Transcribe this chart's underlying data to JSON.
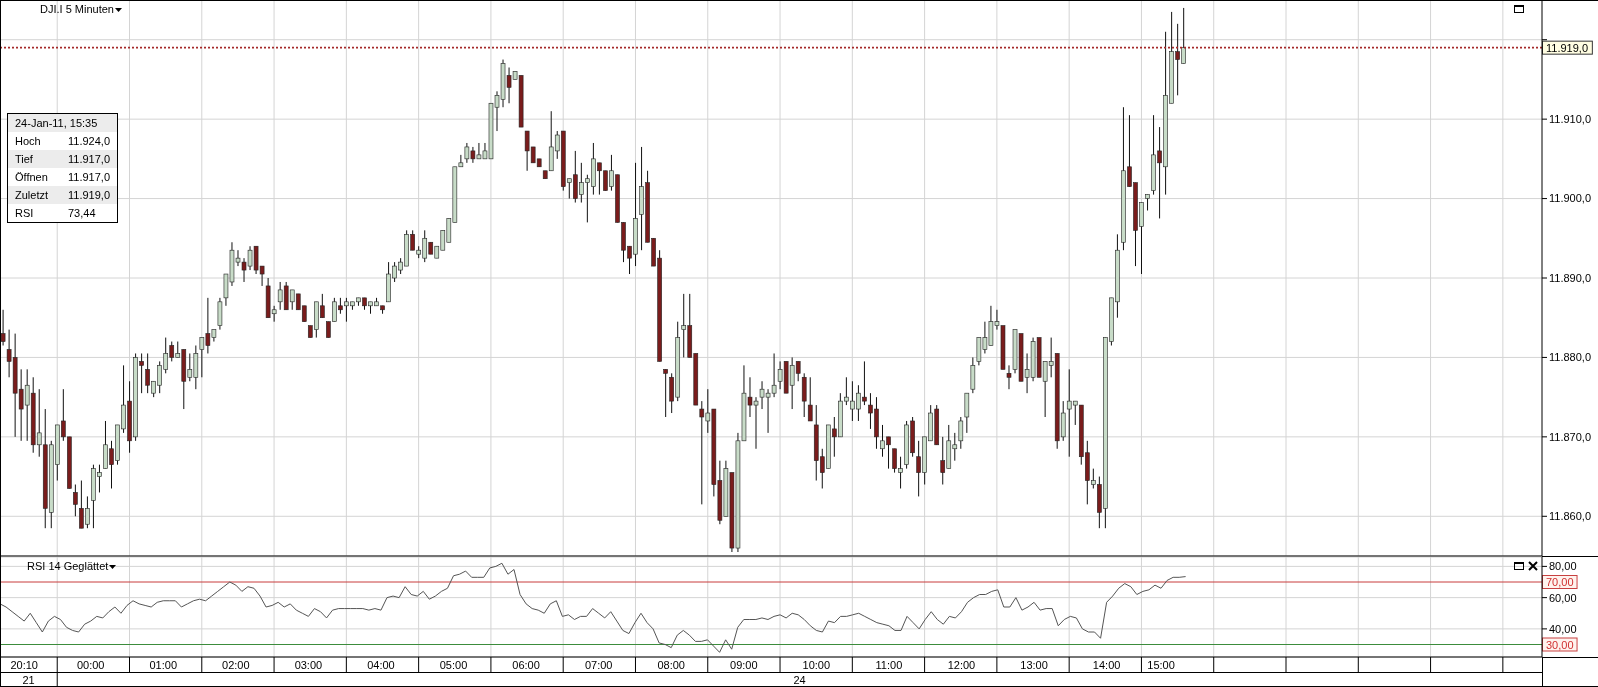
{
  "chart_data": [
    {
      "type": "candlestick",
      "title": "DJI.I 5 Minuten",
      "categories": [
        null,
        null,
        null,
        null,
        null,
        null,
        null,
        null,
        null,
        null,
        null,
        null,
        null,
        null,
        null,
        null,
        null,
        null,
        null,
        null,
        null,
        null,
        null,
        null,
        null,
        null,
        null,
        null,
        null,
        null,
        null,
        null,
        null,
        null,
        null,
        null,
        null,
        null,
        null,
        null,
        null,
        null,
        null,
        null,
        null,
        null,
        null,
        null,
        null,
        null,
        null,
        null,
        null,
        null,
        null,
        null,
        null,
        null,
        null,
        null,
        null,
        null,
        null,
        null,
        null,
        null,
        null,
        null,
        null,
        null,
        null,
        null,
        null,
        null,
        null,
        null,
        null,
        null,
        null,
        null,
        null,
        null,
        null,
        null,
        null,
        null,
        null,
        null,
        null,
        null,
        null,
        null,
        null,
        null,
        null,
        null,
        null,
        null,
        null,
        null,
        null,
        null,
        null,
        null,
        null,
        null,
        null,
        null,
        null,
        null,
        null,
        null,
        null,
        null,
        null,
        null,
        null,
        null,
        null,
        null,
        null,
        null,
        null,
        null,
        null,
        null,
        null,
        null,
        null,
        null,
        null,
        null,
        null,
        null,
        null,
        null,
        null,
        null,
        null,
        null,
        null,
        null,
        null,
        null,
        null,
        null,
        null,
        null,
        null,
        null,
        null,
        null,
        null,
        null,
        null,
        null,
        null,
        null,
        null,
        null,
        null,
        null,
        null,
        null,
        null,
        null,
        null,
        null,
        null,
        null,
        null,
        null,
        null,
        null,
        null,
        null,
        null,
        null,
        null,
        null,
        null,
        null,
        null,
        null,
        null,
        null,
        null,
        null,
        null,
        null,
        null,
        null,
        null,
        null,
        null,
        null,
        null,
        null,
        null,
        null,
        null,
        null,
        null,
        null,
        null,
        null,
        null,
        null,
        null,
        null,
        null,
        null,
        null,
        null,
        null,
        null,
        null,
        null,
        null,
        null,
        null,
        null,
        null,
        null,
        null,
        null,
        null,
        null,
        null,
        null,
        null,
        null,
        null,
        null,
        null,
        null,
        null,
        null,
        null,
        null,
        null,
        null,
        null,
        null,
        null,
        null,
        null,
        null,
        null,
        null,
        null,
        null,
        null,
        null,
        null,
        null
      ],
      "ohlc": [
        [
          11883,
          11886,
          11881.5,
          11882
        ],
        [
          11881,
          11883.5,
          11877.5,
          11879.5
        ],
        [
          11880,
          11883,
          11870,
          11875.5
        ],
        [
          11876,
          11878.5,
          11869.5,
          11873.5
        ],
        [
          11874,
          11878.5,
          11869.5,
          11876.5
        ],
        [
          11875.5,
          11877.5,
          11868,
          11869
        ],
        [
          11869,
          11876,
          11867.5,
          11870.5
        ],
        [
          11869,
          11873.5,
          11858.5,
          11861
        ],
        [
          11860.5,
          11869.5,
          11858.5,
          11869
        ],
        [
          11866.5,
          11871.5,
          11864.5,
          11871.5
        ],
        [
          11872,
          11876,
          11869.5,
          11870
        ],
        [
          11870,
          11870,
          11863.5,
          11863.5
        ],
        [
          11863,
          11864,
          11860,
          11861.5
        ],
        [
          11861,
          11864.5,
          11858.5,
          11858.5
        ],
        [
          11859,
          11862.5,
          11858.5,
          11861
        ],
        [
          11862,
          11866.5,
          11858.5,
          11866
        ],
        [
          11865,
          11866.5,
          11863,
          11865.5
        ],
        [
          11866,
          11872,
          11866,
          11869
        ],
        [
          11868.5,
          11869.5,
          11863.5,
          11866.5
        ],
        [
          11867,
          11871.5,
          11866.5,
          11871.5
        ],
        [
          11871,
          11879,
          11870.5,
          11874
        ],
        [
          11874.5,
          11877,
          11868,
          11869.5
        ],
        [
          11870,
          11880.5,
          11869.5,
          11880
        ],
        [
          11879.5,
          11880.5,
          11875.5,
          11879
        ],
        [
          11878.5,
          11880.5,
          11875.5,
          11876.5
        ],
        [
          11875.5,
          11877,
          11875,
          11877
        ],
        [
          11876.5,
          11879.5,
          11875.5,
          11879
        ],
        [
          11878.5,
          11882.5,
          11878,
          11880.5
        ],
        [
          11881.5,
          11882,
          11879.5,
          11880
        ],
        [
          11880,
          11882,
          11880,
          11880.5
        ],
        [
          11881,
          11881,
          11873.5,
          11877
        ],
        [
          11877.5,
          11880.5,
          11877,
          11878.5
        ],
        [
          11877.5,
          11881.5,
          11876,
          11880.5
        ],
        [
          11881,
          11882.5,
          11877.5,
          11882.5
        ],
        [
          11883,
          11887.5,
          11880.5,
          11881.5
        ],
        [
          11882.5,
          11883.5,
          11882,
          11883.5
        ],
        [
          11884,
          11887.5,
          11883.5,
          11887
        ],
        [
          11887.5,
          11890.5,
          11886.5,
          11890.5
        ],
        [
          11889.5,
          11894.5,
          11889,
          11893.5
        ],
        [
          11892,
          11893.5,
          11891.5,
          11892.5
        ],
        [
          11892,
          11892.5,
          11889.5,
          11891
        ],
        [
          11891.5,
          11894,
          11891,
          11893.5
        ],
        [
          11894,
          11894,
          11890.5,
          11891
        ],
        [
          11891.5,
          11891.5,
          11889,
          11890.5
        ],
        [
          11889,
          11890,
          11885,
          11885
        ],
        [
          11885.5,
          11886.5,
          11884.5,
          11886
        ],
        [
          11887,
          11889.5,
          11886,
          11888.5
        ],
        [
          11889,
          11889.5,
          11886,
          11886
        ],
        [
          11887,
          11888.5,
          11886,
          11888.5
        ],
        [
          11888,
          11888,
          11886,
          11886
        ],
        [
          11886.5,
          11886.5,
          11884.5,
          11884.5
        ],
        [
          11884,
          11884,
          11882.5,
          11882.5
        ],
        [
          11883.5,
          11887,
          11882.5,
          11887
        ],
        [
          11886.5,
          11888,
          11885,
          11885
        ],
        [
          11884.5,
          11884.5,
          11882.5,
          11882.5
        ],
        [
          11884.5,
          11887.5,
          11884.5,
          11887
        ],
        [
          11886.5,
          11887.5,
          11885.5,
          11886
        ],
        [
          11886.5,
          11887.5,
          11884.5,
          11887
        ],
        [
          11886.5,
          11887,
          11886,
          11887
        ],
        [
          11887,
          11887.5,
          11886.5,
          11887.5
        ],
        [
          11887.5,
          11887.5,
          11886,
          11886.5
        ],
        [
          11886.5,
          11887,
          11885.5,
          11887
        ],
        [
          11886.5,
          11887.5,
          11886.5,
          11887
        ],
        [
          11886.5,
          11886.5,
          11885.5,
          11886
        ],
        [
          11887,
          11892,
          11887,
          11890.5
        ],
        [
          11890,
          11892,
          11889.5,
          11891.5
        ],
        [
          11891,
          11892.5,
          11890.5,
          11892
        ],
        [
          11891.5,
          11896,
          11891.5,
          11895.5
        ],
        [
          11895.5,
          11896,
          11893.5,
          11893.5
        ],
        [
          11893,
          11894,
          11892.5,
          11893.5
        ],
        [
          11892.5,
          11896,
          11892,
          11895
        ],
        [
          11894.5,
          11894.5,
          11893,
          11893
        ],
        [
          11892.5,
          11894,
          11892.5,
          11894
        ],
        [
          11893.5,
          11896,
          11893.5,
          11896
        ],
        [
          11894.5,
          11897.5,
          11894.5,
          11897.5
        ],
        [
          11897,
          11904,
          11897,
          11904
        ],
        [
          11904,
          11905.5,
          11904,
          11904.5
        ],
        [
          11905,
          11907,
          11904.5,
          11906.5
        ],
        [
          11906,
          11906.5,
          11904.5,
          11905
        ],
        [
          11905,
          11907,
          11905,
          11905.5
        ],
        [
          11905,
          11907,
          11905,
          11906
        ],
        [
          11905,
          11912,
          11905,
          11912
        ],
        [
          11911.5,
          11913.5,
          11908.5,
          11913
        ],
        [
          11912.5,
          11917.5,
          11911.5,
          11917
        ],
        [
          11915.5,
          11916.5,
          11912,
          11914
        ],
        [
          11915,
          11916,
          11915,
          11916
        ],
        [
          11915.5,
          11915.5,
          11909,
          11909
        ],
        [
          11908.5,
          11908.5,
          11903.5,
          11906
        ],
        [
          11906.5,
          11906.5,
          11904.5,
          11904.5
        ],
        [
          11905,
          11905,
          11904,
          11904
        ],
        [
          11903.5,
          11903.5,
          11902.5,
          11902.5
        ],
        [
          11903.5,
          11911,
          11903.5,
          11906.5
        ],
        [
          11906,
          11908.5,
          11905,
          11908
        ],
        [
          11908.5,
          11908.5,
          11901,
          11901.5
        ],
        [
          11902,
          11902.5,
          11900,
          11902.5
        ],
        [
          11903,
          11906,
          11899.5,
          11900
        ],
        [
          11900.5,
          11904.5,
          11899.5,
          11902
        ],
        [
          11902,
          11903,
          11897,
          11902.5
        ],
        [
          11901.5,
          11907,
          11900.5,
          11905
        ],
        [
          11904.5,
          11904.5,
          11900.5,
          11903.5
        ],
        [
          11903.5,
          11903.5,
          11901,
          11901
        ],
        [
          11901.5,
          11905.5,
          11901,
          11903.5
        ],
        [
          11903,
          11903,
          11897,
          11897
        ],
        [
          11897,
          11897,
          11892,
          11893.5
        ],
        [
          11894,
          11894,
          11890.5,
          11892.5
        ],
        [
          11893,
          11904.5,
          11891.5,
          11897.5
        ],
        [
          11898,
          11906.5,
          11893.5,
          11901.5
        ],
        [
          11902,
          11903.5,
          11894.5,
          11894.5
        ],
        [
          11895,
          11895,
          11891.5,
          11891.5
        ],
        [
          11892.5,
          11893.5,
          11879.5,
          11879.5
        ],
        [
          11878.5,
          11878.5,
          11872.5,
          11878
        ],
        [
          11877.5,
          11878,
          11873,
          11874.5
        ],
        [
          11875,
          11884.5,
          11874.5,
          11882.5
        ],
        [
          11883.5,
          11888,
          11880,
          11884
        ],
        [
          11884,
          11888,
          11880,
          11880
        ],
        [
          11880.5,
          11880.5,
          11874,
          11874
        ],
        [
          11873.5,
          11874.5,
          11861.5,
          11872.5
        ],
        [
          11872,
          11876,
          11870.5,
          11873
        ],
        [
          11873.5,
          11873.5,
          11862.5,
          11864
        ],
        [
          11864.5,
          11867,
          11859,
          11859.5
        ],
        [
          11860,
          11867,
          11860,
          11866
        ],
        [
          11865.5,
          11865.5,
          11855.5,
          11856
        ],
        [
          11856,
          11870.5,
          11855.5,
          11869.5
        ],
        [
          11869.5,
          11879,
          11869.5,
          11875.5
        ],
        [
          11875,
          11877.5,
          11872.5,
          11874
        ],
        [
          11874,
          11875,
          11868.5,
          11874.5
        ],
        [
          11875,
          11877,
          11873.5,
          11876
        ],
        [
          11875,
          11876,
          11870.5,
          11875.5
        ],
        [
          11875.5,
          11880.5,
          11875,
          11876.5
        ],
        [
          11877,
          11879.5,
          11876,
          11878.5
        ],
        [
          11879.5,
          11879.5,
          11875.5,
          11875.5
        ],
        [
          11876.5,
          11880,
          11873.5,
          11879
        ],
        [
          11879.5,
          11879.5,
          11877,
          11878
        ],
        [
          11877.5,
          11878,
          11872.5,
          11874.5
        ],
        [
          11874,
          11877.5,
          11872,
          11872
        ],
        [
          11871.5,
          11874,
          11864.5,
          11867
        ],
        [
          11867.5,
          11868.5,
          11863.5,
          11865.5
        ],
        [
          11866,
          11871.5,
          11866,
          11871.5
        ],
        [
          11871,
          11872.5,
          11867.5,
          11870
        ],
        [
          11870,
          11875.5,
          11870,
          11874.5
        ],
        [
          11874.5,
          11877.5,
          11874,
          11875
        ],
        [
          11873.5,
          11877,
          11872,
          11874.5
        ],
        [
          11873.5,
          11876.5,
          11872,
          11875.5
        ],
        [
          11875,
          11879.5,
          11874,
          11874.5
        ],
        [
          11874,
          11875.5,
          11871,
          11873
        ],
        [
          11873.5,
          11875,
          11868.5,
          11870
        ],
        [
          11868.5,
          11871.5,
          11867.5,
          11869.5
        ],
        [
          11870,
          11870,
          11866,
          11869
        ],
        [
          11868.5,
          11868.5,
          11865.5,
          11866
        ],
        [
          11865.5,
          11867.5,
          11863.5,
          11866
        ],
        [
          11866.5,
          11872,
          11866,
          11871.5
        ],
        [
          11872,
          11872.5,
          11867.5,
          11868
        ],
        [
          11867.5,
          11869.5,
          11862.5,
          11865.5
        ],
        [
          11865.5,
          11870,
          11864,
          11870
        ],
        [
          11869.5,
          11874,
          11869.5,
          11873
        ],
        [
          11873.5,
          11874,
          11869,
          11869
        ],
        [
          11867,
          11870,
          11864,
          11865.5
        ],
        [
          11866,
          11871.5,
          11866,
          11869.5
        ],
        [
          11868.5,
          11870.5,
          11867,
          11869
        ],
        [
          11869.5,
          11872.5,
          11868.5,
          11872
        ],
        [
          11872.5,
          11875.5,
          11870.5,
          11875.5
        ],
        [
          11876,
          11880,
          11875.5,
          11879
        ],
        [
          11879.5,
          11882.5,
          11879,
          11882.5
        ],
        [
          11881,
          11884.5,
          11880.5,
          11882.5
        ],
        [
          11881.5,
          11886.5,
          11881.5,
          11884.5
        ],
        [
          11884,
          11886,
          11883.5,
          11884.5
        ],
        [
          11884,
          11884,
          11878.5,
          11878.5
        ],
        [
          11878,
          11879,
          11876,
          11877.5
        ],
        [
          11878.5,
          11883.5,
          11878,
          11883.5
        ],
        [
          11883,
          11883,
          11877,
          11877
        ],
        [
          11877.5,
          11880.5,
          11875.5,
          11878.5
        ],
        [
          11877.5,
          11882.5,
          11877,
          11882
        ],
        [
          11882.5,
          11882.5,
          11877.5,
          11877.5
        ],
        [
          11877,
          11879.5,
          11872.5,
          11879.5
        ],
        [
          11879,
          11882.5,
          11877.5,
          11879.5
        ],
        [
          11880.5,
          11880.5,
          11868.5,
          11869.5
        ],
        [
          11870,
          11874.5,
          11869.5,
          11873
        ],
        [
          11873.5,
          11878.5,
          11867.5,
          11874.5
        ],
        [
          11874,
          11874.5,
          11871.5,
          11874.5
        ],
        [
          11874,
          11874,
          11866.5,
          11867.5
        ],
        [
          11868,
          11869.5,
          11861.5,
          11864.5
        ],
        [
          11864,
          11866,
          11863.5,
          11864.5
        ],
        [
          11864,
          11865,
          11858.5,
          11860.5
        ],
        [
          11861,
          11882.5,
          11858.5,
          11882.5
        ],
        [
          11882,
          11887.5,
          11881.5,
          11887.5
        ],
        [
          11887,
          11895.5,
          11885,
          11893.5
        ],
        [
          11894.5,
          11911.5,
          11893.5,
          11903.5
        ],
        [
          11904,
          11910.5,
          11901.5,
          11901.5
        ],
        [
          11902,
          11902,
          11891.5,
          11896
        ],
        [
          11896.5,
          11899.5,
          11890.5,
          11899.5
        ],
        [
          11900,
          11900.5,
          11898.5,
          11900.5
        ],
        [
          11901,
          11910.5,
          11900.5,
          11905.5
        ],
        [
          11906,
          11909,
          11897.5,
          11904.5
        ],
        [
          11904,
          11921,
          11900.5,
          11913
        ],
        [
          11912,
          11923.5,
          11912,
          11918.5
        ],
        [
          11918.5,
          11922,
          11913,
          11917.5
        ],
        [
          11917,
          11924,
          11917,
          11919
        ],
        null,
        null,
        null,
        null,
        null,
        null,
        null,
        null,
        null,
        null,
        null,
        null,
        null,
        null,
        null,
        null,
        null,
        null,
        null,
        null,
        null,
        null,
        null,
        null,
        null,
        null,
        null,
        null,
        null,
        null,
        null,
        null,
        null,
        null,
        null,
        null,
        null,
        null,
        null,
        null,
        null,
        null,
        null,
        null,
        null,
        null,
        null,
        null,
        null,
        null,
        null,
        null,
        null,
        null,
        null,
        null,
        null,
        null,
        null
      ],
      "colors": [
        "#7a1c1c",
        "#7a1c1c",
        "#7a1c1c",
        "#7a1c1c",
        "#c8dcc8",
        "#7a1c1c",
        "#c8dcc8",
        "#7a1c1c",
        "#c8dcc8",
        "#c8dcc8",
        "#7a1c1c",
        "#7a1c1c",
        "#7a1c1c",
        "#7a1c1c",
        "#c8dcc8",
        "#c8dcc8",
        "#c8dcc8",
        "#c8dcc8",
        "#7a1c1c",
        "#c8dcc8",
        "#c8dcc8",
        "#7a1c1c",
        "#c8dcc8",
        "#7a1c1c",
        "#7a1c1c",
        "#c8dcc8",
        "#c8dcc8",
        "#c8dcc8",
        "#7a1c1c",
        "#c8dcc8",
        "#7a1c1c",
        "#c8dcc8",
        "#c8dcc8",
        "#c8dcc8",
        "#7a1c1c",
        "#c8dcc8",
        "#c8dcc8",
        "#c8dcc8",
        "#c8dcc8",
        "#c8dcc8",
        "#7a1c1c",
        "#c8dcc8",
        "#7a1c1c",
        "#7a1c1c",
        "#7a1c1c",
        "#c8dcc8",
        "#c8dcc8",
        "#7a1c1c",
        "#c8dcc8",
        "#7a1c1c",
        "#7a1c1c",
        "#7a1c1c",
        "#c8dcc8",
        "#7a1c1c",
        "#7a1c1c",
        "#c8dcc8",
        "#7a1c1c",
        "#c8dcc8",
        "#c8dcc8",
        "#c8dcc8",
        "#7a1c1c",
        "#c8dcc8",
        "#c8dcc8",
        "#7a1c1c",
        "#c8dcc8",
        "#c8dcc8",
        "#c8dcc8",
        "#c8dcc8",
        "#7a1c1c",
        "#c8dcc8",
        "#c8dcc8",
        "#7a1c1c",
        "#c8dcc8",
        "#c8dcc8",
        "#c8dcc8",
        "#c8dcc8",
        "#c8dcc8",
        "#c8dcc8",
        "#7a1c1c",
        "#c8dcc8",
        "#c8dcc8",
        "#c8dcc8",
        "#c8dcc8",
        "#c8dcc8",
        "#7a1c1c",
        "#c8dcc8",
        "#7a1c1c",
        "#7a1c1c",
        "#7a1c1c",
        "#7a1c1c",
        "#7a1c1c",
        "#c8dcc8",
        "#c8dcc8",
        "#7a1c1c",
        "#c8dcc8",
        "#7a1c1c",
        "#c8dcc8",
        "#c8dcc8",
        "#c8dcc8",
        "#7a1c1c",
        "#7a1c1c",
        "#c8dcc8",
        "#7a1c1c",
        "#7a1c1c",
        "#7a1c1c",
        "#c8dcc8",
        "#c8dcc8",
        "#7a1c1c",
        "#7a1c1c",
        "#7a1c1c",
        "#7a1c1c",
        "#7a1c1c",
        "#c8dcc8",
        "#c8dcc8",
        "#7a1c1c",
        "#7a1c1c",
        "#7a1c1c",
        "#c8dcc8",
        "#7a1c1c",
        "#7a1c1c",
        "#c8dcc8",
        "#7a1c1c",
        "#c8dcc8",
        "#c8dcc8",
        "#7a1c1c",
        "#c8dcc8",
        "#c8dcc8",
        "#c8dcc8",
        "#c8dcc8",
        "#c8dcc8",
        "#7a1c1c",
        "#c8dcc8",
        "#7a1c1c",
        "#7a1c1c",
        "#7a1c1c",
        "#7a1c1c",
        "#7a1c1c",
        "#c8dcc8",
        "#7a1c1c",
        "#c8dcc8",
        "#c8dcc8",
        "#c8dcc8",
        "#c8dcc8",
        "#7a1c1c",
        "#7a1c1c",
        "#7a1c1c",
        "#c8dcc8",
        "#7a1c1c",
        "#7a1c1c",
        "#c8dcc8",
        "#c8dcc8",
        "#7a1c1c",
        "#7a1c1c",
        "#c8dcc8",
        "#c8dcc8",
        "#7a1c1c",
        "#7a1c1c",
        "#c8dcc8",
        "#c8dcc8",
        "#c8dcc8",
        "#c8dcc8",
        "#c8dcc8",
        "#c8dcc8",
        "#c8dcc8",
        "#c8dcc8",
        "#c8dcc8",
        "#7a1c1c",
        "#7a1c1c",
        "#c8dcc8",
        "#7a1c1c",
        "#c8dcc8",
        "#c8dcc8",
        "#7a1c1c",
        "#c8dcc8",
        "#c8dcc8",
        "#7a1c1c",
        "#c8dcc8",
        "#c8dcc8",
        "#c8dcc8",
        "#7a1c1c",
        "#7a1c1c",
        "#c8dcc8",
        "#7a1c1c",
        "#c8dcc8",
        "#c8dcc8",
        "#c8dcc8",
        "#c8dcc8",
        "#7a1c1c",
        "#7a1c1c",
        "#c8dcc8",
        "#c8dcc8",
        "#c8dcc8",
        "#7a1c1c",
        "#c8dcc8",
        "#c8dcc8",
        "#7a1c1c",
        "#c8dcc8",
        null,
        null,
        null,
        null,
        null,
        null,
        null,
        null,
        null,
        null,
        null,
        null,
        null,
        null,
        null,
        null,
        null,
        null,
        null,
        null,
        null,
        null,
        null,
        null,
        null,
        null,
        null,
        null,
        null,
        null,
        null,
        null,
        null,
        null,
        null,
        null,
        null,
        null,
        null,
        null,
        null,
        null,
        null,
        null,
        null,
        null,
        null,
        null,
        null,
        null,
        null,
        null,
        null,
        null,
        null,
        null,
        null,
        null,
        null
      ],
      "ylim": [
        11855,
        11925
      ],
      "yticks": [
        {
          "value": 11860,
          "label": "11.860,0"
        },
        {
          "value": 11870,
          "label": "11.870,0"
        },
        {
          "value": 11880,
          "label": "11.880,0"
        },
        {
          "value": 11890,
          "label": "11.890,0"
        },
        {
          "value": 11900,
          "label": "11.900,0"
        },
        {
          "value": 11910,
          "label": "11.910,0"
        },
        {
          "value": 11920,
          "label": null
        }
      ],
      "tick_labels": "y",
      "grid": true,
      "ref_lines": [
        {
          "axis": "y",
          "value": 11919,
          "label": "11.919,0",
          "color": "#a52a2a",
          "line_style": "dotted"
        }
      ],
      "annotations": [
        "24-Jan-11, 15:35",
        "Hoch",
        "11.924,0",
        "Tief",
        "11.917,0",
        "Öffnen",
        "11.917,0",
        "Zuletzt",
        "11.919,0",
        "RSI",
        "73,44"
      ]
    },
    {
      "type": "line",
      "title": "RSI 14 Geglättet",
      "categories": [
        null,
        null,
        null,
        null,
        "20:10",
        null,
        null,
        null,
        null,
        null,
        null,
        null,
        null,
        null,
        null,
        "00:00",
        null,
        null,
        null,
        null,
        null,
        null,
        null,
        null,
        null,
        null,
        null,
        "01:00",
        null,
        null,
        null,
        null,
        null,
        null,
        null,
        null,
        null,
        null,
        null,
        "02:00",
        null,
        null,
        null,
        null,
        null,
        null,
        null,
        null,
        null,
        null,
        null,
        "03:00",
        null,
        null,
        null,
        null,
        null,
        null,
        null,
        null,
        null,
        null,
        null,
        "04:00",
        null,
        null,
        null,
        null,
        null,
        null,
        null,
        null,
        null,
        null,
        null,
        "05:00",
        null,
        null,
        null,
        null,
        null,
        null,
        null,
        null,
        null,
        null,
        null,
        "06:00",
        null,
        null,
        null,
        null,
        null,
        null,
        null,
        null,
        null,
        null,
        null,
        "07:00",
        null,
        null,
        null,
        null,
        null,
        null,
        null,
        null,
        null,
        null,
        null,
        "08:00",
        null,
        null,
        null,
        null,
        null,
        null,
        null,
        null,
        null,
        null,
        null,
        "09:00",
        null,
        null,
        null,
        null,
        null,
        null,
        null,
        null,
        null,
        null,
        null,
        "10:00",
        null,
        null,
        null,
        null,
        null,
        null,
        null,
        null,
        null,
        null,
        null,
        "11:00",
        null,
        null,
        null,
        null,
        null,
        null,
        null,
        null,
        null,
        null,
        null,
        "12:00",
        null,
        null,
        null,
        null,
        null,
        null,
        null,
        null,
        null,
        null,
        null,
        "13:00",
        null,
        null,
        null,
        null,
        null,
        null,
        null,
        null,
        null,
        null,
        null,
        "14:00",
        null,
        null,
        null,
        null,
        null,
        null,
        null,
        null,
        "15:00",
        null,
        null,
        null,
        null,
        null,
        null,
        null,
        null,
        null,
        null,
        null,
        null,
        null,
        null,
        null,
        null,
        null,
        null,
        null,
        null,
        null,
        null,
        null,
        null,
        null,
        null,
        null,
        null,
        null,
        null,
        null,
        null,
        null,
        null,
        null,
        null,
        null,
        null,
        null,
        null,
        null,
        null,
        null,
        null,
        null,
        null,
        null,
        null,
        null,
        null,
        null,
        null,
        null,
        null,
        null,
        null,
        null,
        null,
        null,
        null,
        null,
        null,
        null
      ],
      "values": [
        56,
        54,
        51,
        48,
        45,
        50,
        44,
        38,
        45,
        48,
        46,
        41,
        39,
        38,
        43,
        45,
        48,
        47,
        51,
        54,
        50,
        55,
        58,
        56,
        55,
        54,
        57,
        58,
        58,
        58,
        54,
        56,
        58,
        59,
        58,
        61,
        64,
        67,
        70,
        68,
        64,
        67,
        66,
        61,
        54,
        55,
        57,
        54,
        56,
        52,
        50,
        48,
        53,
        51,
        47,
        52,
        53,
        53,
        53,
        53,
        53,
        52,
        53,
        52,
        60,
        61,
        60,
        67,
        62,
        61,
        64,
        59,
        61,
        64,
        66,
        74,
        75,
        77,
        73,
        73,
        73,
        79,
        80,
        82,
        75,
        78,
        62,
        56,
        53,
        52,
        50,
        56,
        58,
        48,
        49,
        46,
        48,
        48,
        53,
        50,
        47,
        51,
        45,
        39,
        37,
        44,
        50,
        44,
        40,
        31,
        30,
        28,
        36,
        39,
        36,
        32,
        32,
        33,
        29,
        25,
        33,
        27,
        41,
        46,
        46,
        46,
        47,
        46,
        48,
        49,
        47,
        50,
        49,
        46,
        42,
        39,
        38,
        45,
        44,
        48,
        48,
        49,
        50,
        48,
        46,
        44,
        43,
        42,
        39,
        39,
        48,
        44,
        40,
        46,
        51,
        46,
        43,
        48,
        47,
        51,
        57,
        60,
        62,
        62,
        64,
        65,
        54,
        54,
        60,
        52,
        54,
        57,
        52,
        53,
        53,
        42,
        46,
        48,
        47,
        40,
        38,
        38,
        34,
        57,
        61,
        66,
        69,
        67,
        62,
        64,
        65,
        68,
        66,
        71,
        73,
        73,
        73.44,
        null,
        null,
        null,
        null,
        null,
        null,
        null,
        null,
        null,
        null,
        null,
        null,
        null,
        null,
        null,
        null,
        null,
        null,
        null,
        null,
        null,
        null,
        null,
        null,
        null,
        null,
        null,
        null,
        null,
        null,
        null,
        null,
        null,
        null,
        null,
        null,
        null,
        null,
        null,
        null,
        null,
        null,
        null,
        null,
        null,
        null,
        null,
        null,
        null,
        null,
        null,
        null,
        null,
        null,
        null,
        null,
        null,
        null,
        null
      ],
      "color": "#555555",
      "ylim": [
        22,
        86
      ],
      "yticks": [
        {
          "value": 40,
          "label": "40,00"
        },
        {
          "value": 60,
          "label": "60,00"
        },
        {
          "value": 80,
          "label": "80,00"
        }
      ],
      "grid": true,
      "ref_lines": [
        {
          "axis": "y",
          "value": 70,
          "label": "70,00",
          "color": "#c83c3c"
        },
        {
          "axis": "y",
          "value": 30,
          "label": "30,00",
          "color": "#3c8c3c"
        }
      ],
      "annotations": [
        "21",
        "24"
      ]
    }
  ]
}
